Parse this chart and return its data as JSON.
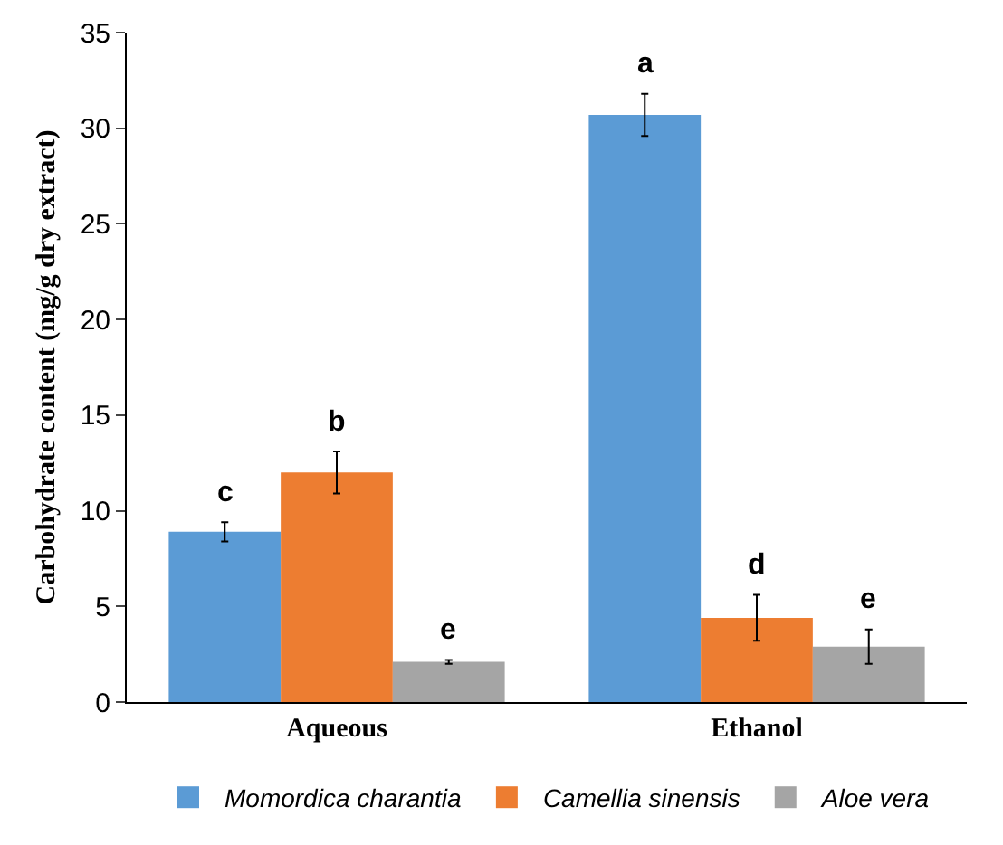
{
  "chart_data": {
    "type": "bar",
    "ylabel": "Carbohydrate content (mg/g dry extract)",
    "categories": [
      "Aqueous",
      "Ethanol"
    ],
    "series": [
      {
        "name": "Momordica charantia",
        "color": "#5b9bd5",
        "values": [
          8.9,
          30.7
        ],
        "errors": [
          0.5,
          1.1
        ],
        "value_labels": [
          "c",
          "a"
        ]
      },
      {
        "name": "Camellia sinensis",
        "color": "#ed7d31",
        "values": [
          12.0,
          4.4
        ],
        "errors": [
          1.1,
          1.2
        ],
        "value_labels": [
          "b",
          "d"
        ]
      },
      {
        "name": "Aloe vera",
        "color": "#a5a5a5",
        "values": [
          2.1,
          2.9
        ],
        "errors": [
          0.1,
          0.9
        ],
        "value_labels": [
          "e",
          "e"
        ]
      }
    ],
    "ylim": [
      0,
      35
    ],
    "yticks": [
      0,
      5,
      10,
      15,
      20,
      25,
      30,
      35
    ],
    "grid": false,
    "legend": "bottom"
  }
}
